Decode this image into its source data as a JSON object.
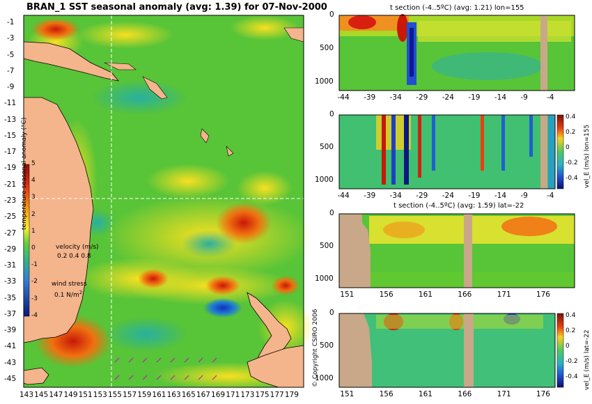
{
  "map": {
    "title": "BRAN_1 SST seasonal anomaly (avg: 1.39) for 07-Nov-2000",
    "y_ticks": [
      "-1",
      "-3",
      "-5",
      "-7",
      "-9",
      "-11",
      "-13",
      "-15",
      "-17",
      "-19",
      "-21",
      "-23",
      "-25",
      "-27",
      "-29",
      "-31",
      "-33",
      "-35",
      "-37",
      "-39",
      "-41",
      "-43",
      "-45"
    ],
    "x_ticks": [
      "143",
      "145",
      "147",
      "149",
      "151",
      "153",
      "155",
      "157",
      "159",
      "161",
      "163",
      "165",
      "167",
      "169",
      "171",
      "173",
      "175",
      "177",
      "179"
    ],
    "colorbar": {
      "label": "temperature seasonal anomaly (°C)",
      "ticks": [
        "5",
        "4",
        "3",
        "2",
        "1",
        "0",
        "-1",
        "-2",
        "-3",
        "-4"
      ]
    },
    "velocity_label": "velocity (m/s)",
    "velocity_scale": "0.2 0.4 0.8",
    "wind_label": "wind stress",
    "wind_scale": "0.1 N/m",
    "wind_unit_sup": "2",
    "crosshair": {
      "lon": 155,
      "lat": -22
    },
    "colors": {
      "ocean_mid": "#5cc83a",
      "land": "#f4b48c",
      "warm": "#e02010",
      "cool": "#1c50d0"
    }
  },
  "copyright": "© Copyright CSIRO 2006",
  "panels": [
    {
      "title": "t section (-4..5ºC) (avg: 1.21) lon=155",
      "y_ticks": [
        "0",
        "500",
        "1000"
      ],
      "x_ticks": [
        "-44",
        "-39",
        "-34",
        "-29",
        "-24",
        "-19",
        "-14",
        "-9",
        "-4"
      ]
    },
    {
      "title": "",
      "y_ticks": [
        "0",
        "500",
        "1000"
      ],
      "x_ticks": [
        "-44",
        "-39",
        "-34",
        "-29",
        "-24",
        "-19",
        "-14",
        "-9",
        "-4"
      ],
      "colorbar_label": "vel_E (m/s) lon=155",
      "colorbar_ticks": [
        "0.4",
        "0.2",
        "0",
        "-0.2",
        "-0.4"
      ]
    },
    {
      "title": "t section (-4..5ºC) (avg: 1.59) lat=-22",
      "y_ticks": [
        "0",
        "500",
        "1000"
      ],
      "x_ticks": [
        "151",
        "156",
        "161",
        "166",
        "171",
        "176"
      ]
    },
    {
      "title": "",
      "y_ticks": [
        "0",
        "500",
        "1000"
      ],
      "x_ticks": [
        "151",
        "156",
        "161",
        "166",
        "171",
        "176"
      ],
      "colorbar_label": "vel_E (m/s) lat=-22",
      "colorbar_ticks": [
        "0.4",
        "0.2",
        "0",
        "-0.2",
        "-0.4"
      ]
    }
  ],
  "chart_data": [
    {
      "type": "heatmap",
      "title": "BRAN_1 SST seasonal anomaly (avg: 1.39) for 07-Nov-2000",
      "xlabel": "",
      "ylabel": "",
      "x_range": [
        142,
        180
      ],
      "y_range": [
        -45,
        0
      ],
      "value_label": "temperature seasonal anomaly (°C)",
      "value_range": [
        -4,
        5
      ],
      "average": 1.39
    },
    {
      "type": "heatmap",
      "title": "t section (-4..5ºC) (avg: 1.21) lon=155",
      "x_range": [
        -45,
        0
      ],
      "y_range": [
        1050,
        0
      ],
      "average": 1.21
    },
    {
      "type": "heatmap",
      "title": "",
      "value_label": "vel_E (m/s) lon=155",
      "value_range": [
        -0.4,
        0.4
      ],
      "x_range": [
        -45,
        0
      ],
      "y_range": [
        1050,
        0
      ]
    },
    {
      "type": "heatmap",
      "title": "t section (-4..5ºC) (avg: 1.59) lat=-22",
      "x_range": [
        150,
        180
      ],
      "y_range": [
        1050,
        0
      ],
      "average": 1.59
    },
    {
      "type": "heatmap",
      "title": "",
      "value_label": "vel_E (m/s) lat=-22",
      "value_range": [
        -0.4,
        0.4
      ],
      "x_range": [
        150,
        180
      ],
      "y_range": [
        1050,
        0
      ]
    }
  ]
}
